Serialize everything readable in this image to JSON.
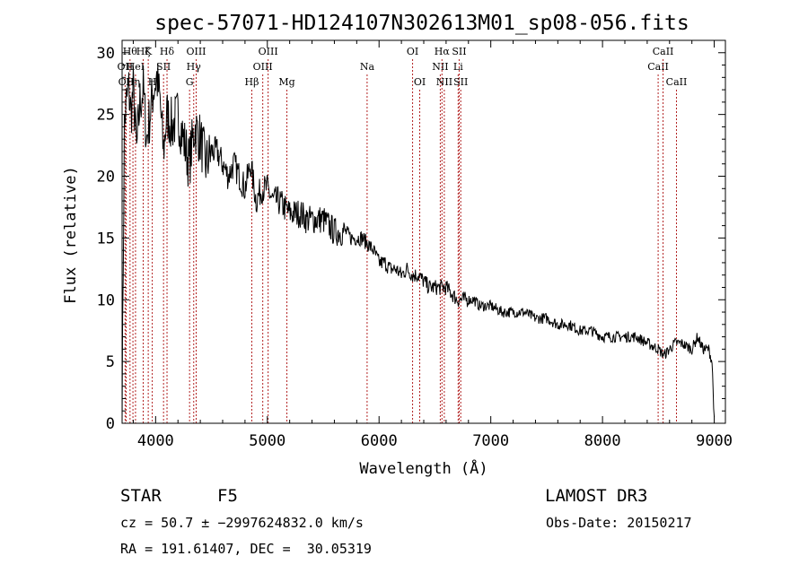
{
  "chart_data": {
    "type": "line",
    "title": "spec-57071-HD124107N302613M01_sp08-056.fits",
    "xlabel": "Wavelength (Å)",
    "ylabel": "Flux (relative)",
    "xlim": [
      3700,
      9100
    ],
    "ylim": [
      0,
      31
    ],
    "xticks": [
      4000,
      5000,
      6000,
      7000,
      8000,
      9000
    ],
    "yticks": [
      0,
      5,
      10,
      15,
      20,
      25,
      30
    ],
    "series": [
      {
        "name": "flux",
        "x": [
          3700,
          3720,
          3740,
          3760,
          3780,
          3800,
          3830,
          3860,
          3890,
          3920,
          3950,
          3980,
          4010,
          4040,
          4070,
          4100,
          4150,
          4200,
          4250,
          4300,
          4350,
          4400,
          4450,
          4500,
          4550,
          4600,
          4650,
          4700,
          4750,
          4800,
          4850,
          4900,
          4950,
          5000,
          5050,
          5100,
          5150,
          5200,
          5250,
          5300,
          5350,
          5400,
          5450,
          5500,
          5550,
          5600,
          5650,
          5700,
          5750,
          5800,
          5850,
          5900,
          5950,
          6000,
          6050,
          6100,
          6150,
          6200,
          6250,
          6300,
          6350,
          6400,
          6450,
          6500,
          6550,
          6600,
          6650,
          6700,
          6750,
          6800,
          6850,
          6900,
          6950,
          7000,
          7100,
          7200,
          7300,
          7400,
          7500,
          7600,
          7700,
          7800,
          7900,
          8000,
          8100,
          8200,
          8300,
          8400,
          8500,
          8550,
          8600,
          8650,
          8700,
          8800,
          8850,
          8900,
          8950,
          8980,
          9000
        ],
        "values": [
          1,
          24,
          26,
          27,
          25,
          27,
          22,
          26,
          27,
          23,
          25,
          27,
          28,
          26,
          22,
          25,
          24,
          25,
          23,
          21,
          24,
          23,
          21,
          22,
          22,
          21,
          20,
          21,
          20,
          19,
          21,
          18,
          19,
          19,
          18,
          18,
          17.5,
          17,
          17,
          17,
          16.5,
          16.5,
          16.5,
          16.5,
          16,
          15.5,
          15.5,
          15.5,
          15,
          15,
          15,
          14.5,
          14,
          13,
          13,
          12.5,
          12.5,
          12,
          12.5,
          12,
          12,
          11.5,
          11,
          11,
          11,
          11,
          10.5,
          10,
          10,
          10,
          10,
          9.5,
          9.5,
          9.5,
          9,
          9,
          9,
          8.5,
          8.5,
          8,
          8,
          7.5,
          7.5,
          7,
          7,
          7,
          7,
          6.5,
          6,
          5.5,
          6,
          6.5,
          6.5,
          6,
          7,
          6,
          6,
          5,
          0.5
        ]
      }
    ],
    "line_markers": [
      {
        "wl": 3727,
        "label": "OII",
        "row": 2
      },
      {
        "wl": 3736,
        "label": "OII",
        "row": 3
      },
      {
        "wl": 3771,
        "label": "Hθ",
        "row": 1
      },
      {
        "wl": 3797,
        "label": "Hη",
        "row": 3
      },
      {
        "wl": 3820,
        "label": "HeI",
        "row": 2
      },
      {
        "wl": 3889,
        "label": "Hζ",
        "row": 1
      },
      {
        "wl": 3934,
        "label": "K",
        "row": 1
      },
      {
        "wl": 3970,
        "label": "H",
        "row": 3
      },
      {
        "wl": 4071,
        "label": "SII",
        "row": 2
      },
      {
        "wl": 4102,
        "label": "Hδ",
        "row": 1
      },
      {
        "wl": 4304,
        "label": "G",
        "row": 3
      },
      {
        "wl": 4341,
        "label": "Hγ",
        "row": 2
      },
      {
        "wl": 4363,
        "label": "OIII",
        "row": 1
      },
      {
        "wl": 4861,
        "label": "Hβ",
        "row": 3
      },
      {
        "wl": 4959,
        "label": "OIII",
        "row": 2
      },
      {
        "wl": 5007,
        "label": "OIII",
        "row": 1
      },
      {
        "wl": 5175,
        "label": "Mg",
        "row": 3
      },
      {
        "wl": 5893,
        "label": "Na",
        "row": 2
      },
      {
        "wl": 6300,
        "label": "OI",
        "row": 1
      },
      {
        "wl": 6364,
        "label": "OI",
        "row": 3
      },
      {
        "wl": 6548,
        "label": "NII",
        "row": 2
      },
      {
        "wl": 6563,
        "label": "Hα",
        "row": 1
      },
      {
        "wl": 6584,
        "label": "NII",
        "row": 3
      },
      {
        "wl": 6708,
        "label": "Li",
        "row": 2
      },
      {
        "wl": 6717,
        "label": "SII",
        "row": 1
      },
      {
        "wl": 6731,
        "label": "SII",
        "row": 3
      },
      {
        "wl": 8498,
        "label": "CaII",
        "row": 2
      },
      {
        "wl": 8542,
        "label": "CaII",
        "row": 1
      },
      {
        "wl": 8662,
        "label": "CaII",
        "row": 3
      }
    ]
  },
  "info": {
    "class": "STAR",
    "subclass": "F5",
    "survey": "LAMOST DR3",
    "cz": "cz = 50.7 ± −2997624832.0 km/s",
    "obs_date": "Obs-Date: 20150217",
    "coords": "RA = 191.61407, DEC =  30.05319"
  },
  "colors": {
    "line_marker": "#b22222",
    "trace": "#000000",
    "axes": "#000000"
  }
}
